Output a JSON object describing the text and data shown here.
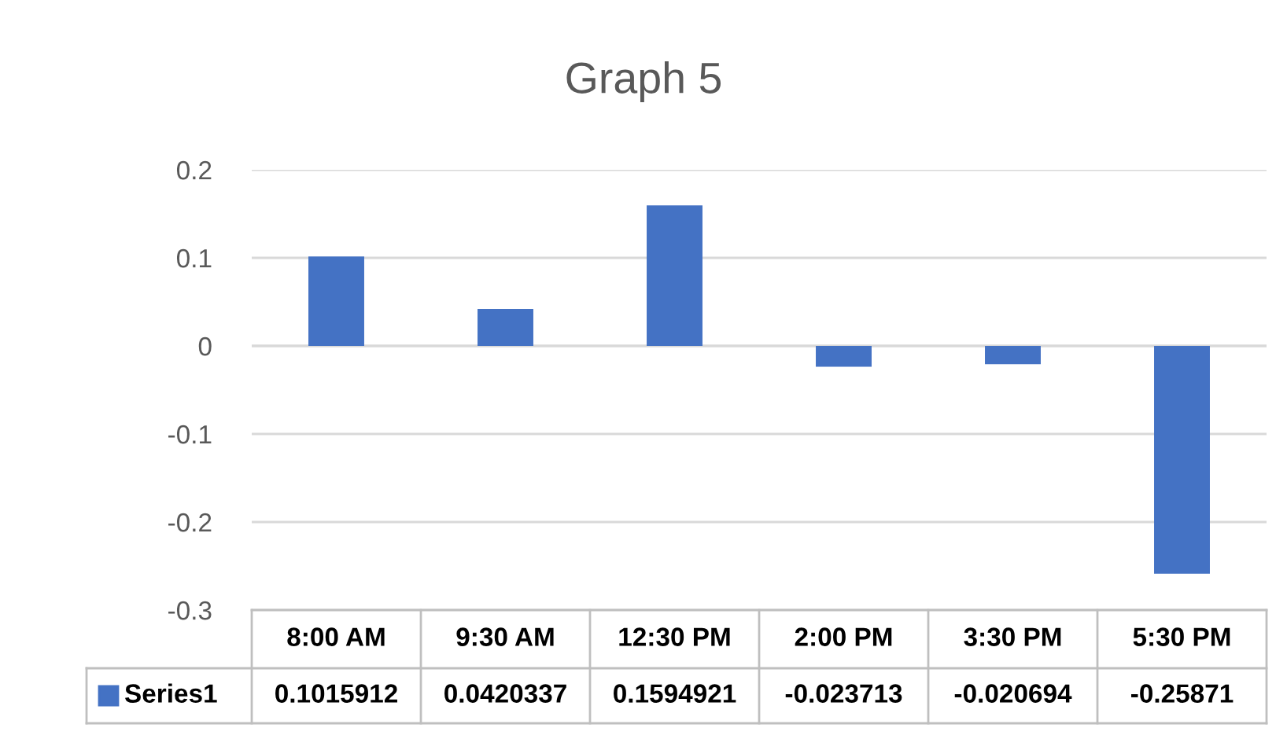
{
  "chart_data": {
    "type": "bar",
    "title": "Graph 5",
    "categories": [
      "8:00 AM",
      "9:30 AM",
      "12:30 PM",
      "2:00 PM",
      "3:30 PM",
      "5:30 PM"
    ],
    "series": [
      {
        "name": "Series1",
        "color": "#4472c4",
        "values": [
          0.1015912,
          0.0420337,
          0.1594921,
          -0.023713,
          -0.020694,
          -0.25871
        ]
      }
    ],
    "ylim": [
      -0.3,
      0.2
    ],
    "yticks": [
      -0.3,
      -0.2,
      -0.1,
      0,
      0.1,
      0.2
    ],
    "grid": "y",
    "data_labels": true
  }
}
